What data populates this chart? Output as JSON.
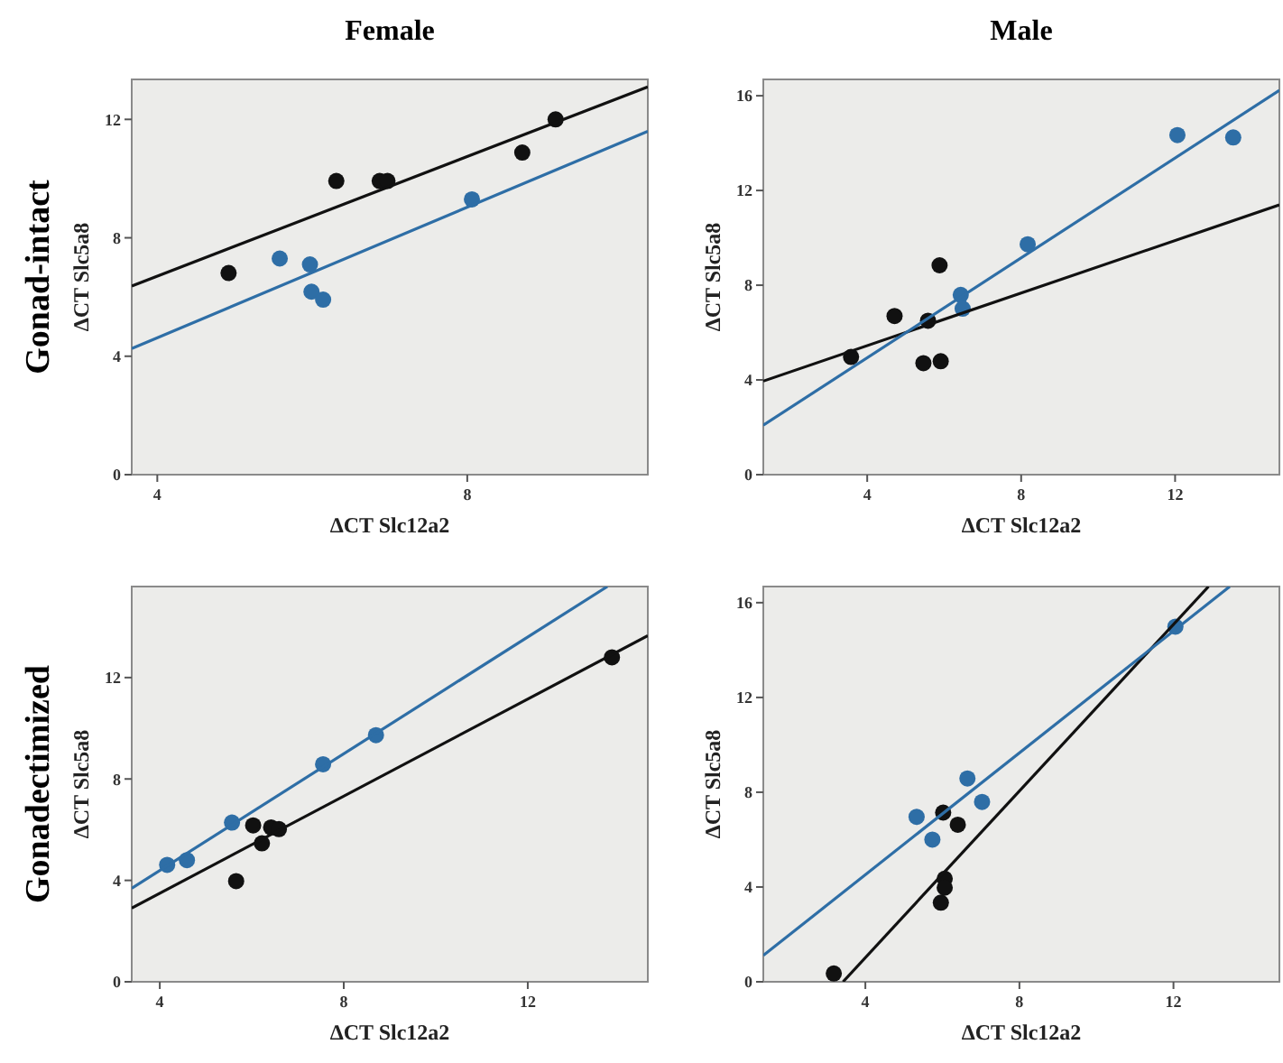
{
  "chart_data": [
    {
      "type": "scatter",
      "title": "Female",
      "annotations": [
        "Gonad-intact"
      ],
      "xlabel": "ΔCT Slc12a2",
      "ylabel": "ΔCT Slc5a8",
      "xlim": [
        3.67,
        10.33
      ],
      "ylim": [
        0,
        13.35
      ],
      "xticks": [
        4,
        8
      ],
      "yticks": [
        0,
        4,
        8,
        12
      ],
      "marker": "circle",
      "series": [
        {
          "color": "#111111",
          "x": [
            4.92,
            6.31,
            6.87,
            6.97,
            8.71,
            9.14
          ],
          "values": [
            6.81,
            9.92,
            9.92,
            9.92,
            10.88,
            12.0
          ]
        },
        {
          "color": "#2e6ea6",
          "x": [
            5.58,
            5.97,
            5.99,
            6.14,
            8.06
          ],
          "values": [
            7.3,
            7.1,
            6.18,
            5.91,
            9.3
          ]
        },
        {
          "type": "line",
          "marker": "none",
          "color": "#111111",
          "x": [
            3.67,
            10.33
          ],
          "values": [
            6.37,
            13.1
          ]
        },
        {
          "type": "line",
          "marker": "none",
          "color": "#2e6ea6",
          "x": [
            3.67,
            10.33
          ],
          "values": [
            4.26,
            11.6
          ]
        }
      ]
    },
    {
      "type": "scatter",
      "title": "Male",
      "xlabel": "ΔCT Slc12a2",
      "ylabel": "ΔCT Slc5a8",
      "xlim": [
        1.3,
        14.71
      ],
      "ylim": [
        0,
        16.69
      ],
      "xticks": [
        4,
        8,
        12
      ],
      "yticks": [
        0,
        4,
        8,
        12,
        16
      ],
      "marker": "circle",
      "series": [
        {
          "color": "#111111",
          "x": [
            3.58,
            4.71,
            5.58,
            5.46,
            5.88,
            5.91
          ],
          "values": [
            4.97,
            6.7,
            6.5,
            4.71,
            8.84,
            4.79
          ]
        },
        {
          "color": "#2e6ea6",
          "x": [
            6.43,
            6.48,
            8.17,
            12.06,
            13.51
          ],
          "values": [
            7.59,
            7.01,
            9.73,
            14.34,
            14.24
          ]
        },
        {
          "type": "line",
          "marker": "none",
          "color": "#111111",
          "x": [
            1.3,
            14.71
          ],
          "values": [
            3.95,
            11.39
          ]
        },
        {
          "type": "line",
          "marker": "none",
          "color": "#2e6ea6",
          "x": [
            1.3,
            14.71
          ],
          "values": [
            2.09,
            16.23
          ]
        }
      ]
    },
    {
      "type": "scatter",
      "annotations": [
        "Gonadectimized"
      ],
      "xlabel": "ΔCT Slc12a2",
      "ylabel": "ΔCT Slc5a8",
      "xlim": [
        3.39,
        14.61
      ],
      "ylim": [
        0,
        15.59
      ],
      "xticks": [
        4,
        8,
        12
      ],
      "yticks": [
        0,
        4,
        8,
        12
      ],
      "marker": "circle",
      "series": [
        {
          "color": "#111111",
          "x": [
            5.66,
            6.03,
            6.22,
            6.42,
            6.59,
            13.83
          ],
          "values": [
            3.97,
            6.17,
            5.46,
            6.09,
            6.02,
            12.8
          ]
        },
        {
          "color": "#2e6ea6",
          "x": [
            4.16,
            4.59,
            5.57,
            7.55,
            8.7
          ],
          "values": [
            4.61,
            4.8,
            6.28,
            8.58,
            9.73
          ]
        },
        {
          "type": "line",
          "marker": "none",
          "color": "#111111",
          "x": [
            3.39,
            14.61
          ],
          "values": [
            2.91,
            13.65
          ]
        },
        {
          "type": "line",
          "marker": "none",
          "color": "#2e6ea6",
          "x": [
            3.39,
            13.73
          ],
          "values": [
            3.69,
            15.59
          ]
        }
      ]
    },
    {
      "type": "scatter",
      "xlabel": "ΔCT Slc12a2",
      "ylabel": "ΔCT Slc5a8",
      "xlim": [
        1.35,
        14.75
      ],
      "ylim": [
        0,
        16.68
      ],
      "xticks": [
        4,
        8,
        12
      ],
      "yticks": [
        0,
        4,
        8,
        12,
        16
      ],
      "marker": "circle",
      "series": [
        {
          "color": "#111111",
          "x": [
            3.18,
            6.02,
            6.4,
            6.06,
            6.06,
            5.96
          ],
          "values": [
            0.35,
            7.14,
            6.63,
            4.35,
            3.97,
            3.34
          ]
        },
        {
          "color": "#2e6ea6",
          "x": [
            5.33,
            5.74,
            6.65,
            7.03,
            12.05
          ],
          "values": [
            6.96,
            6.0,
            8.58,
            7.59,
            14.99
          ]
        },
        {
          "type": "line",
          "marker": "none",
          "color": "#111111",
          "x": [
            3.42,
            12.91
          ],
          "values": [
            0,
            16.68
          ]
        },
        {
          "type": "line",
          "marker": "none",
          "color": "#2e6ea6",
          "x": [
            1.35,
            13.46
          ],
          "values": [
            1.11,
            16.68
          ]
        }
      ]
    }
  ]
}
